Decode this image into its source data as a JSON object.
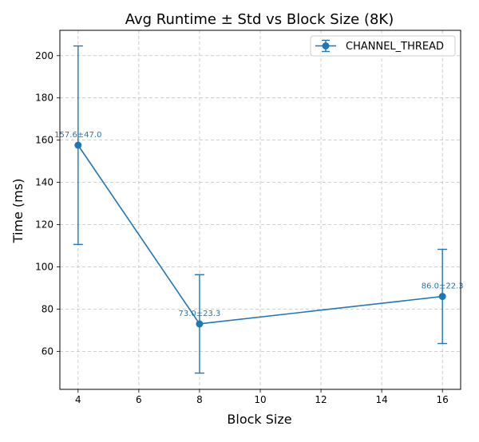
{
  "chart_data": {
    "type": "line",
    "title": "Avg Runtime ± Std vs Block Size (8K)",
    "xlabel": "Block Size",
    "ylabel": "Time (ms)",
    "xlim": [
      3.4,
      16.6
    ],
    "ylim": [
      42,
      212
    ],
    "xticks": [
      4,
      6,
      8,
      10,
      12,
      14,
      16
    ],
    "yticks": [
      60,
      80,
      100,
      120,
      140,
      160,
      180,
      200
    ],
    "grid": true,
    "grid_style": "dashed",
    "legend_position": "top-right",
    "series": [
      {
        "name": "CHANNEL_THREAD",
        "color": "#1f77b4",
        "x": [
          4,
          8,
          16
        ],
        "y": [
          157.6,
          73.0,
          86.0
        ],
        "std": [
          47.0,
          23.3,
          22.3
        ],
        "labels": [
          "157.6±47.0",
          "73.0±23.3",
          "86.0±22.3"
        ]
      }
    ]
  }
}
